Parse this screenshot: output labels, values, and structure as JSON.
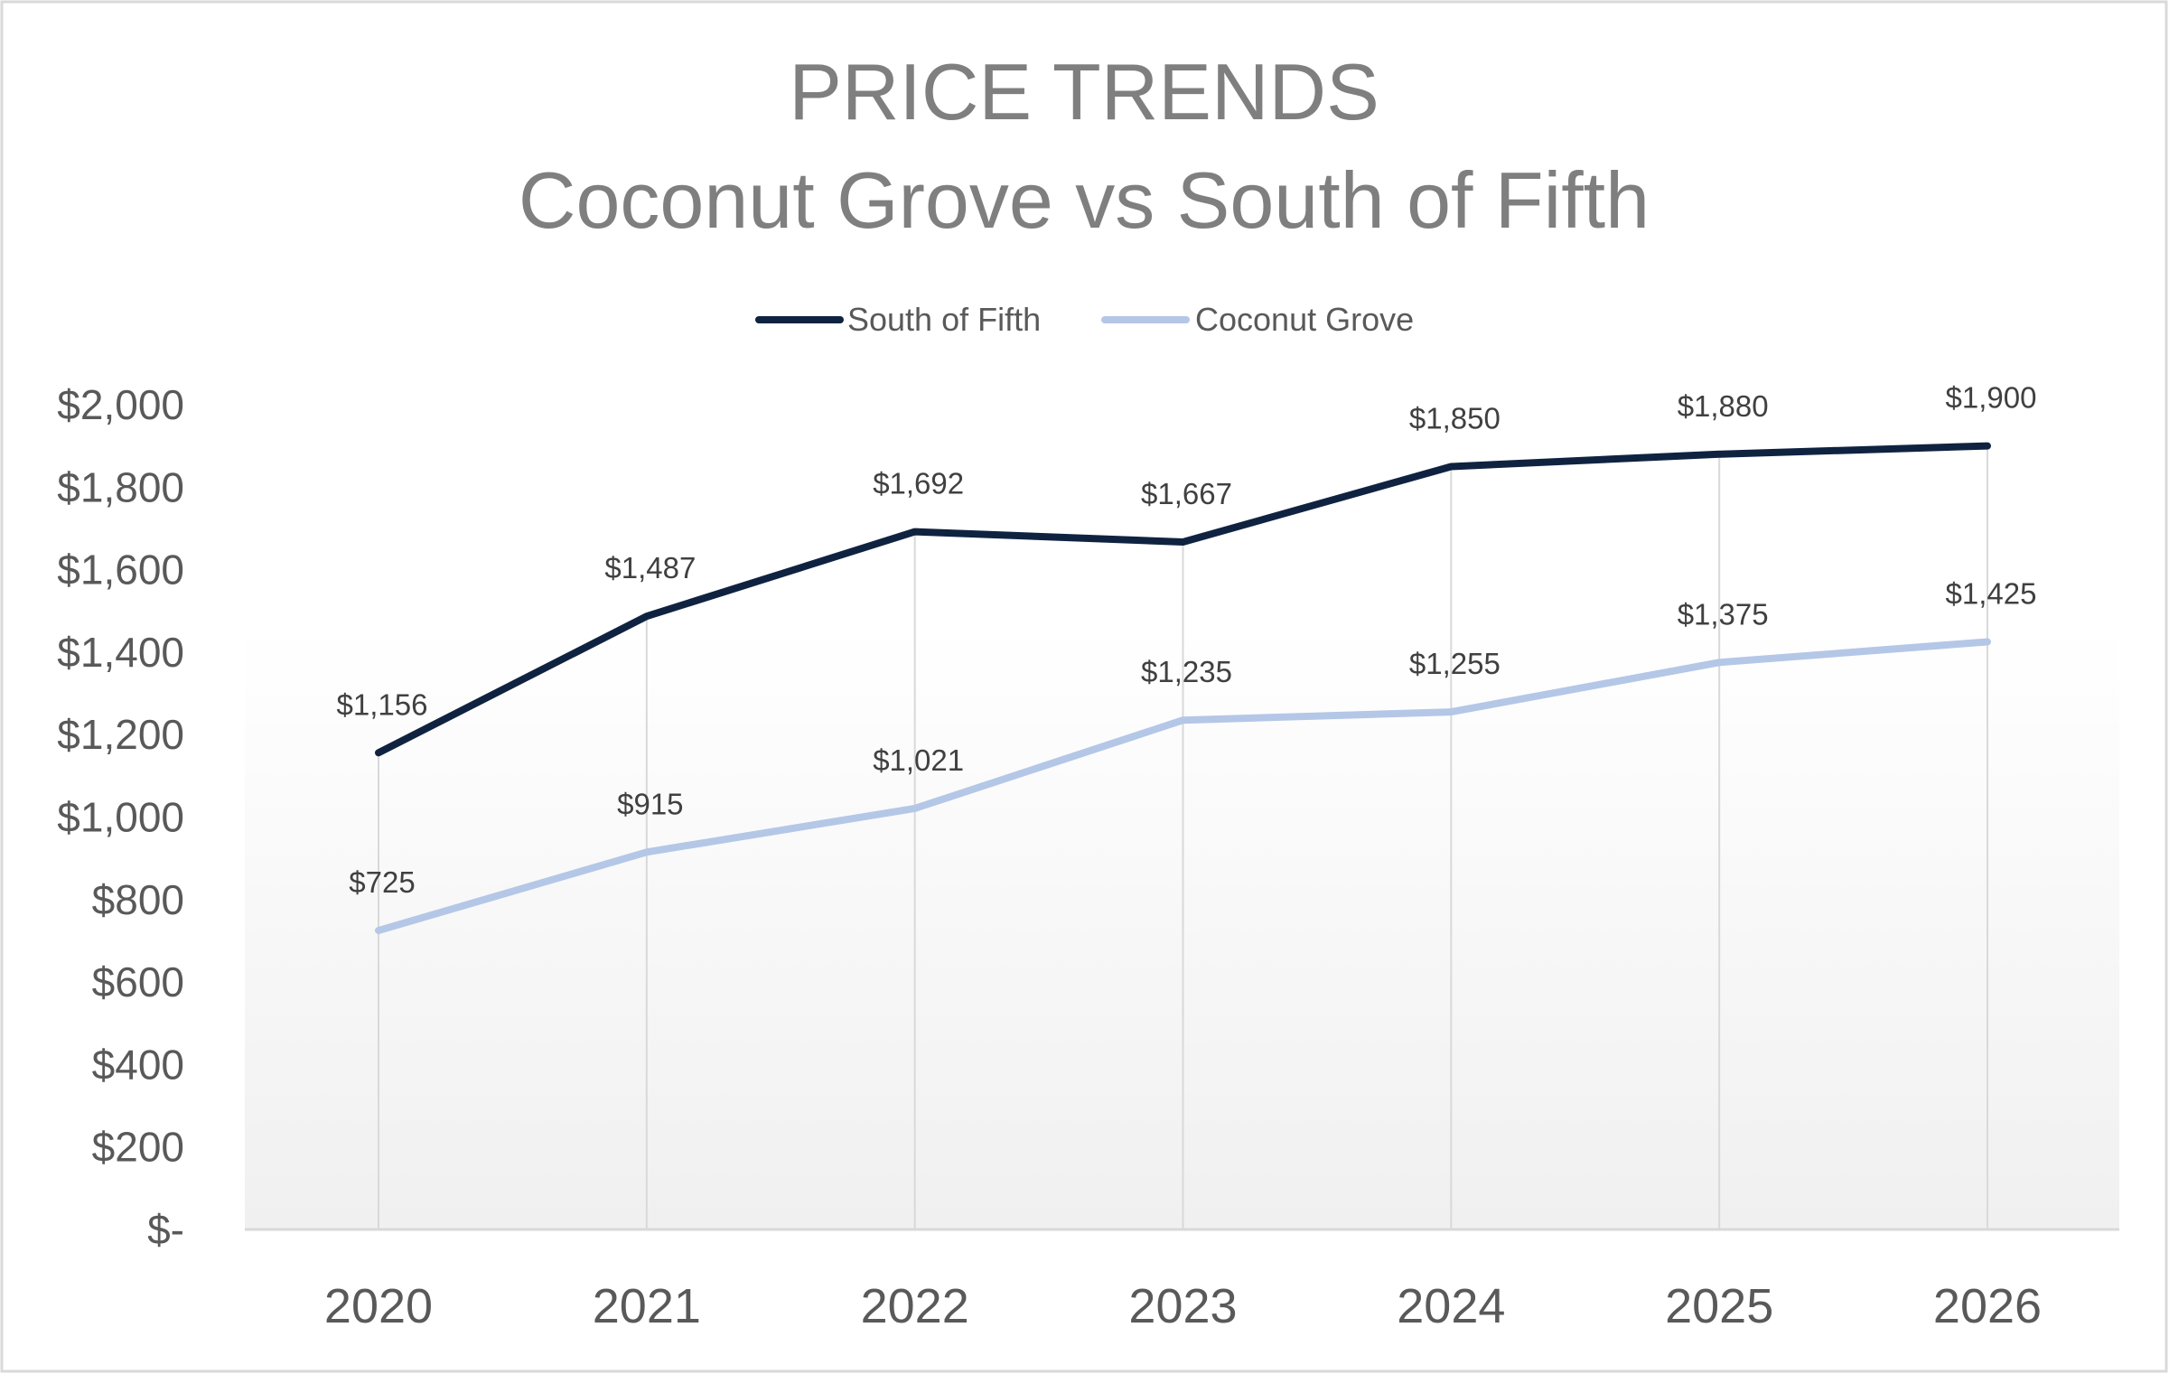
{
  "chart_data": {
    "type": "line",
    "title": "PRICE TRENDS",
    "subtitle": "Coconut Grove vs South of Fifth",
    "xlabel": "",
    "ylabel": "",
    "categories": [
      "2020",
      "2021",
      "2022",
      "2023",
      "2024",
      "2025",
      "2026"
    ],
    "ylim": [
      0,
      2000
    ],
    "yticks": [
      0,
      200,
      400,
      600,
      800,
      1000,
      1200,
      1400,
      1600,
      1800,
      2000
    ],
    "ytick_labels": [
      "$-",
      "$200",
      "$400",
      "$600",
      "$800",
      "$1,000",
      "$1,200",
      "$1,400",
      "$1,600",
      "$1,800",
      "$2,000"
    ],
    "grid": false,
    "drop_lines": true,
    "legend_position": "top",
    "series": [
      {
        "name": "South of Fifth",
        "color": "#0f2341",
        "values": [
          1156,
          1487,
          1692,
          1667,
          1850,
          1880,
          1900
        ],
        "labels": [
          "$1,156",
          "$1,487",
          "$1,692",
          "$1,667",
          "$1,850",
          "$1,880",
          "$1,900"
        ]
      },
      {
        "name": "Coconut Grove",
        "color": "#b4c7e7",
        "values": [
          725,
          915,
          1021,
          1235,
          1255,
          1375,
          1425
        ],
        "labels": [
          "$725",
          "$915",
          "$1,021",
          "$1,235",
          "$1,255",
          "$1,375",
          "$1,425"
        ]
      }
    ]
  }
}
